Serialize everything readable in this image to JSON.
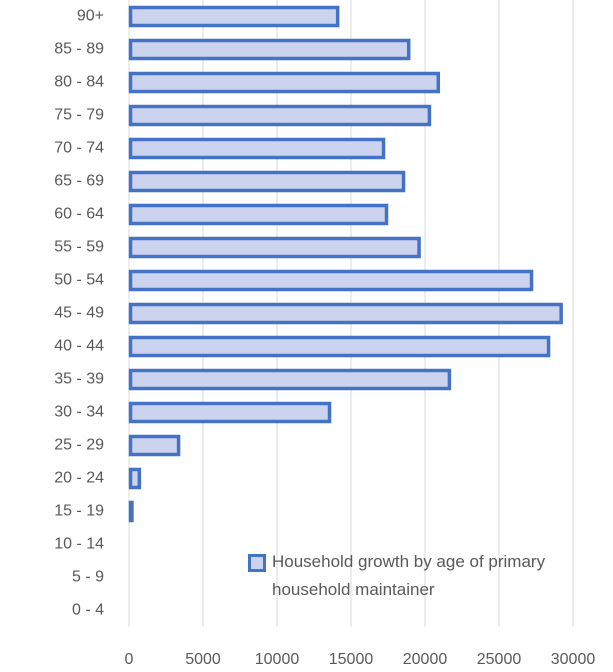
{
  "chart_data": {
    "type": "barh",
    "categories": [
      "0 - 4",
      "5 - 9",
      "10 - 14",
      "15 - 19",
      "20 - 24",
      "25 - 29",
      "30 - 34",
      "35 - 39",
      "40 - 44",
      "45 - 49",
      "50 - 54",
      "55 - 59",
      "60 - 64",
      "65 - 69",
      "70 - 74",
      "75 - 79",
      "80 - 84",
      "85 - 89",
      "90+"
    ],
    "series": [
      {
        "name": "Household growth by age of primary household maintainer",
        "color": "#4472c4",
        "fill": "#ccd3ee",
        "values": [
          0,
          0,
          0,
          300,
          800,
          3450,
          13650,
          21750,
          28450,
          29300,
          27300,
          19700,
          17500,
          18650,
          17300,
          20400,
          21000,
          19000,
          14200
        ]
      }
    ],
    "xlim": [
      0,
      30000
    ],
    "xticks": [
      0,
      5000,
      10000,
      15000,
      20000,
      25000,
      30000
    ],
    "grid": true
  }
}
